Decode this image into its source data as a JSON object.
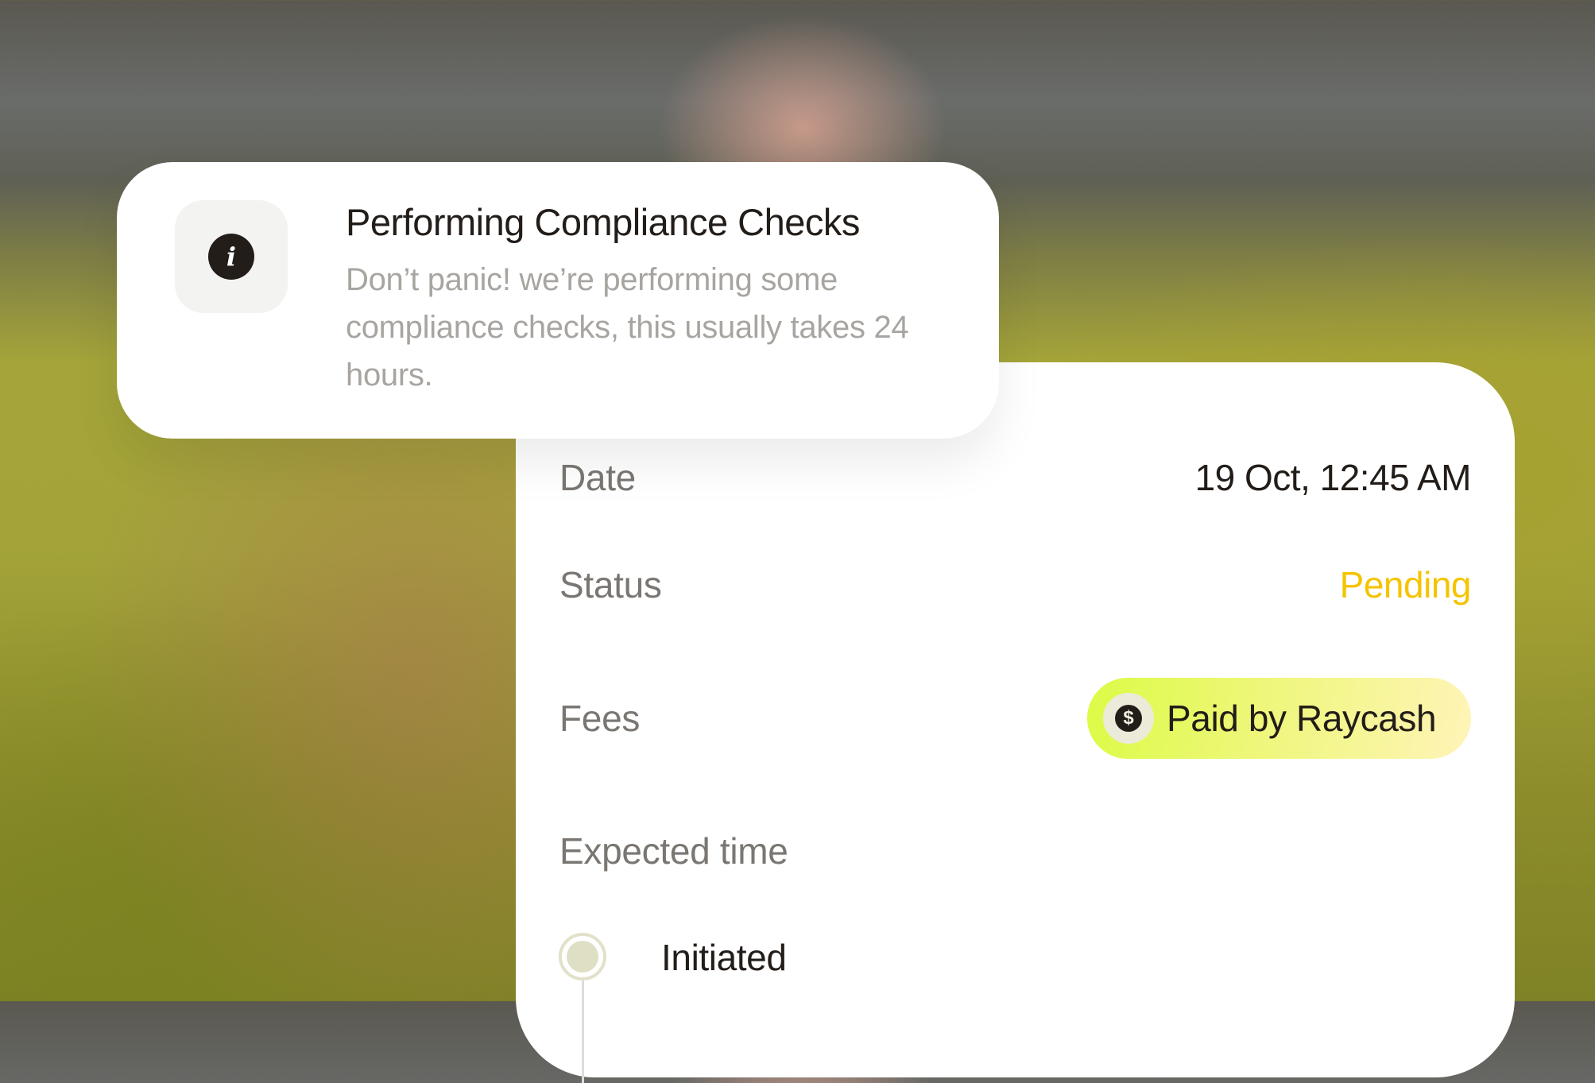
{
  "notification": {
    "icon": "info-icon",
    "title": "Performing Compliance Checks",
    "message": "Don’t panic! we’re performing some compliance checks, this usually takes 24 hours."
  },
  "details": {
    "date": {
      "label": "Date",
      "value": "19 Oct, 12:45 AM"
    },
    "status": {
      "label": "Status",
      "value": "Pending",
      "color": "#F5C400"
    },
    "fees": {
      "label": "Fees",
      "value": "Paid by Raycash",
      "icon": "dollar-coin-icon"
    },
    "expected_time": {
      "label": "Expected time"
    },
    "timeline": [
      {
        "label": "Initiated"
      }
    ]
  }
}
